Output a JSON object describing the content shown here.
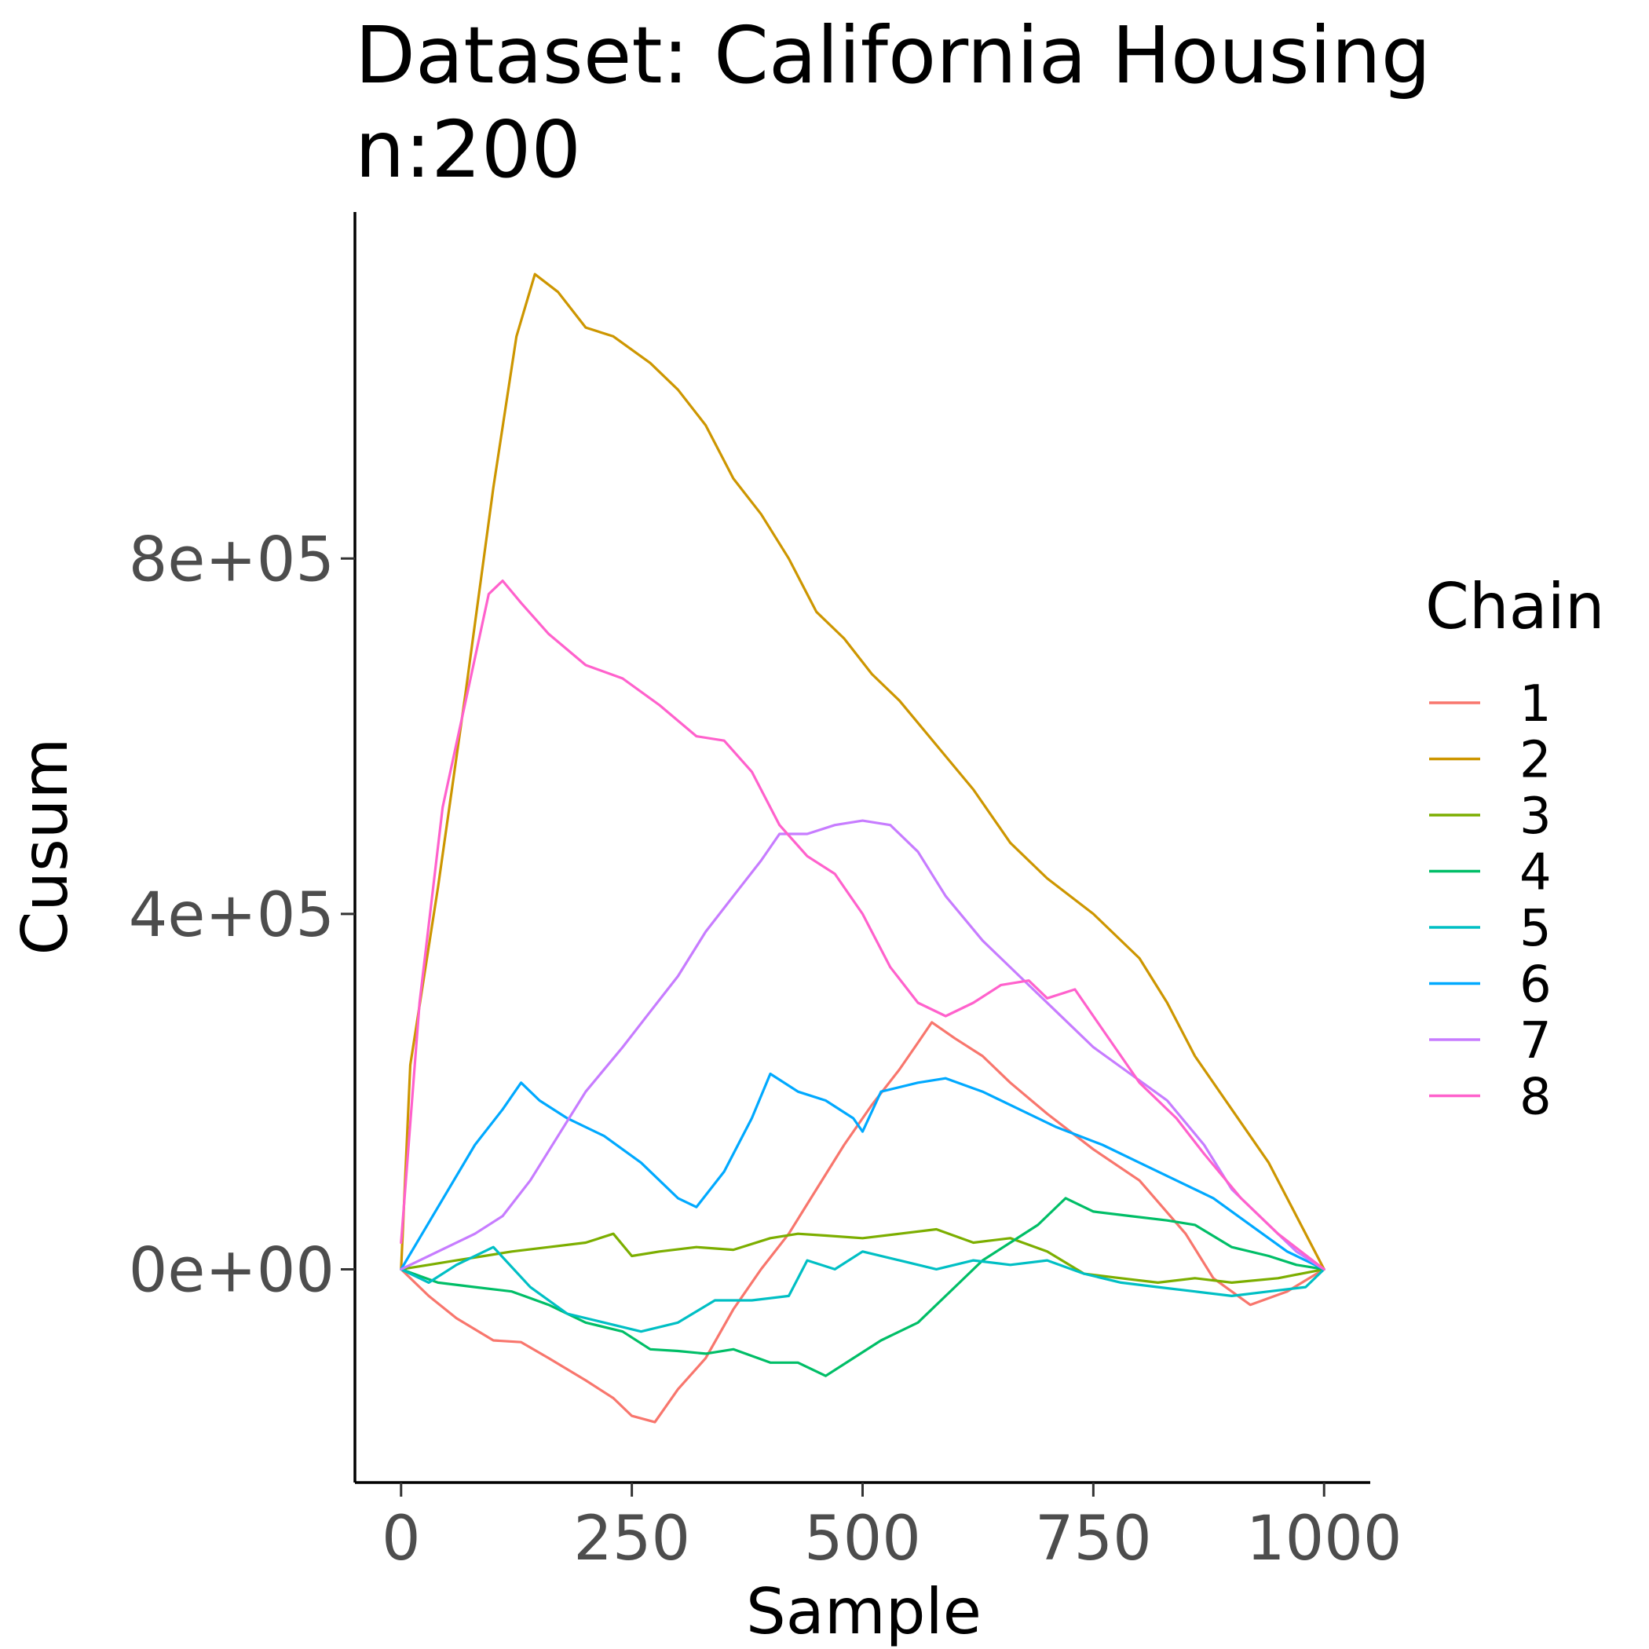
{
  "chart_data": {
    "type": "line",
    "title": "Dataset: California Housing",
    "subtitle": "n:200",
    "xlabel": "Sample",
    "ylabel": "Cusum",
    "xlim": [
      -50,
      1050
    ],
    "ylim": [
      -240000,
      1190000
    ],
    "xticks": [
      0,
      250,
      500,
      750,
      1000
    ],
    "xtick_labels": [
      "0",
      "250",
      "500",
      "750",
      "1000"
    ],
    "yticks": [
      0,
      400000,
      800000
    ],
    "ytick_labels": [
      "0e+00",
      "4e+05",
      "8e+05"
    ],
    "grid": false,
    "legend": {
      "title": "Chain",
      "position": "right"
    },
    "series": [
      {
        "name": "1",
        "color": "#F8766D",
        "points": [
          [
            0,
            0
          ],
          [
            30,
            -30000
          ],
          [
            60,
            -55000
          ],
          [
            100,
            -80000
          ],
          [
            130,
            -82000
          ],
          [
            160,
            -100000
          ],
          [
            200,
            -125000
          ],
          [
            230,
            -145000
          ],
          [
            250,
            -165000
          ],
          [
            275,
            -172000
          ],
          [
            300,
            -135000
          ],
          [
            330,
            -100000
          ],
          [
            360,
            -45000
          ],
          [
            390,
            0
          ],
          [
            420,
            40000
          ],
          [
            450,
            90000
          ],
          [
            480,
            140000
          ],
          [
            510,
            185000
          ],
          [
            540,
            225000
          ],
          [
            560,
            255000
          ],
          [
            575,
            278000
          ],
          [
            600,
            260000
          ],
          [
            630,
            240000
          ],
          [
            660,
            210000
          ],
          [
            700,
            175000
          ],
          [
            750,
            135000
          ],
          [
            800,
            100000
          ],
          [
            850,
            40000
          ],
          [
            880,
            -10000
          ],
          [
            920,
            -40000
          ],
          [
            960,
            -25000
          ],
          [
            1000,
            0
          ]
        ]
      },
      {
        "name": "2",
        "color": "#CD9600",
        "points": [
          [
            0,
            0
          ],
          [
            10,
            230000
          ],
          [
            40,
            430000
          ],
          [
            70,
            650000
          ],
          [
            100,
            880000
          ],
          [
            125,
            1050000
          ],
          [
            145,
            1120000
          ],
          [
            170,
            1100000
          ],
          [
            200,
            1060000
          ],
          [
            230,
            1050000
          ],
          [
            270,
            1020000
          ],
          [
            300,
            990000
          ],
          [
            330,
            950000
          ],
          [
            360,
            890000
          ],
          [
            390,
            850000
          ],
          [
            420,
            800000
          ],
          [
            450,
            740000
          ],
          [
            480,
            710000
          ],
          [
            510,
            670000
          ],
          [
            540,
            640000
          ],
          [
            580,
            590000
          ],
          [
            620,
            540000
          ],
          [
            660,
            480000
          ],
          [
            700,
            440000
          ],
          [
            750,
            400000
          ],
          [
            800,
            350000
          ],
          [
            830,
            300000
          ],
          [
            860,
            240000
          ],
          [
            900,
            180000
          ],
          [
            940,
            120000
          ],
          [
            970,
            60000
          ],
          [
            1000,
            0
          ]
        ]
      },
      {
        "name": "3",
        "color": "#7CAE00",
        "points": [
          [
            0,
            0
          ],
          [
            30,
            5000
          ],
          [
            60,
            10000
          ],
          [
            90,
            15000
          ],
          [
            120,
            20000
          ],
          [
            160,
            25000
          ],
          [
            200,
            30000
          ],
          [
            230,
            40000
          ],
          [
            250,
            15000
          ],
          [
            280,
            20000
          ],
          [
            320,
            25000
          ],
          [
            360,
            22000
          ],
          [
            400,
            35000
          ],
          [
            430,
            40000
          ],
          [
            460,
            38000
          ],
          [
            500,
            35000
          ],
          [
            540,
            40000
          ],
          [
            580,
            45000
          ],
          [
            620,
            30000
          ],
          [
            660,
            35000
          ],
          [
            700,
            20000
          ],
          [
            740,
            -5000
          ],
          [
            780,
            -10000
          ],
          [
            820,
            -15000
          ],
          [
            860,
            -10000
          ],
          [
            900,
            -15000
          ],
          [
            950,
            -10000
          ],
          [
            1000,
            0
          ]
        ]
      },
      {
        "name": "4",
        "color": "#00BE67",
        "points": [
          [
            0,
            0
          ],
          [
            40,
            -15000
          ],
          [
            80,
            -20000
          ],
          [
            120,
            -25000
          ],
          [
            160,
            -40000
          ],
          [
            200,
            -60000
          ],
          [
            240,
            -70000
          ],
          [
            270,
            -90000
          ],
          [
            300,
            -92000
          ],
          [
            330,
            -95000
          ],
          [
            360,
            -90000
          ],
          [
            400,
            -105000
          ],
          [
            430,
            -105000
          ],
          [
            460,
            -120000
          ],
          [
            490,
            -100000
          ],
          [
            520,
            -80000
          ],
          [
            560,
            -60000
          ],
          [
            600,
            -20000
          ],
          [
            630,
            10000
          ],
          [
            660,
            30000
          ],
          [
            690,
            50000
          ],
          [
            720,
            80000
          ],
          [
            750,
            65000
          ],
          [
            790,
            60000
          ],
          [
            830,
            55000
          ],
          [
            860,
            50000
          ],
          [
            900,
            25000
          ],
          [
            940,
            15000
          ],
          [
            970,
            5000
          ],
          [
            1000,
            0
          ]
        ]
      },
      {
        "name": "5",
        "color": "#00BFC4",
        "points": [
          [
            0,
            0
          ],
          [
            30,
            -15000
          ],
          [
            60,
            5000
          ],
          [
            100,
            25000
          ],
          [
            140,
            -20000
          ],
          [
            180,
            -50000
          ],
          [
            220,
            -60000
          ],
          [
            260,
            -70000
          ],
          [
            300,
            -60000
          ],
          [
            340,
            -35000
          ],
          [
            380,
            -35000
          ],
          [
            420,
            -30000
          ],
          [
            440,
            10000
          ],
          [
            470,
            0
          ],
          [
            500,
            20000
          ],
          [
            540,
            10000
          ],
          [
            580,
            0
          ],
          [
            620,
            10000
          ],
          [
            660,
            5000
          ],
          [
            700,
            10000
          ],
          [
            740,
            -5000
          ],
          [
            780,
            -15000
          ],
          [
            820,
            -20000
          ],
          [
            860,
            -25000
          ],
          [
            900,
            -30000
          ],
          [
            940,
            -25000
          ],
          [
            980,
            -20000
          ],
          [
            1000,
            0
          ]
        ]
      },
      {
        "name": "6",
        "color": "#00A9FF",
        "points": [
          [
            0,
            0
          ],
          [
            40,
            70000
          ],
          [
            80,
            140000
          ],
          [
            110,
            180000
          ],
          [
            130,
            210000
          ],
          [
            150,
            190000
          ],
          [
            180,
            170000
          ],
          [
            220,
            150000
          ],
          [
            260,
            120000
          ],
          [
            300,
            80000
          ],
          [
            320,
            70000
          ],
          [
            350,
            110000
          ],
          [
            380,
            170000
          ],
          [
            400,
            220000
          ],
          [
            430,
            200000
          ],
          [
            460,
            190000
          ],
          [
            490,
            170000
          ],
          [
            500,
            155000
          ],
          [
            520,
            200000
          ],
          [
            560,
            210000
          ],
          [
            590,
            215000
          ],
          [
            630,
            200000
          ],
          [
            670,
            180000
          ],
          [
            710,
            160000
          ],
          [
            760,
            140000
          ],
          [
            800,
            120000
          ],
          [
            840,
            100000
          ],
          [
            880,
            80000
          ],
          [
            920,
            50000
          ],
          [
            960,
            20000
          ],
          [
            1000,
            0
          ]
        ]
      },
      {
        "name": "7",
        "color": "#C77CFF",
        "points": [
          [
            0,
            0
          ],
          [
            40,
            20000
          ],
          [
            80,
            40000
          ],
          [
            110,
            60000
          ],
          [
            140,
            100000
          ],
          [
            170,
            150000
          ],
          [
            200,
            200000
          ],
          [
            240,
            250000
          ],
          [
            270,
            290000
          ],
          [
            300,
            330000
          ],
          [
            330,
            380000
          ],
          [
            360,
            420000
          ],
          [
            390,
            460000
          ],
          [
            410,
            490000
          ],
          [
            440,
            490000
          ],
          [
            470,
            500000
          ],
          [
            500,
            505000
          ],
          [
            530,
            500000
          ],
          [
            560,
            470000
          ],
          [
            590,
            420000
          ],
          [
            630,
            370000
          ],
          [
            670,
            330000
          ],
          [
            710,
            290000
          ],
          [
            750,
            250000
          ],
          [
            790,
            220000
          ],
          [
            830,
            190000
          ],
          [
            870,
            140000
          ],
          [
            900,
            90000
          ],
          [
            940,
            50000
          ],
          [
            970,
            20000
          ],
          [
            1000,
            0
          ]
        ]
      },
      {
        "name": "8",
        "color": "#FF61CC",
        "points": [
          [
            0,
            30000
          ],
          [
            20,
            300000
          ],
          [
            45,
            520000
          ],
          [
            70,
            640000
          ],
          [
            95,
            760000
          ],
          [
            110,
            775000
          ],
          [
            130,
            750000
          ],
          [
            160,
            715000
          ],
          [
            200,
            680000
          ],
          [
            240,
            665000
          ],
          [
            280,
            635000
          ],
          [
            320,
            600000
          ],
          [
            350,
            595000
          ],
          [
            380,
            560000
          ],
          [
            410,
            500000
          ],
          [
            440,
            465000
          ],
          [
            470,
            445000
          ],
          [
            500,
            400000
          ],
          [
            530,
            340000
          ],
          [
            560,
            300000
          ],
          [
            590,
            285000
          ],
          [
            620,
            300000
          ],
          [
            650,
            320000
          ],
          [
            680,
            325000
          ],
          [
            700,
            305000
          ],
          [
            730,
            315000
          ],
          [
            760,
            270000
          ],
          [
            800,
            210000
          ],
          [
            840,
            170000
          ],
          [
            870,
            130000
          ],
          [
            910,
            80000
          ],
          [
            950,
            40000
          ],
          [
            1000,
            0
          ]
        ]
      }
    ]
  }
}
